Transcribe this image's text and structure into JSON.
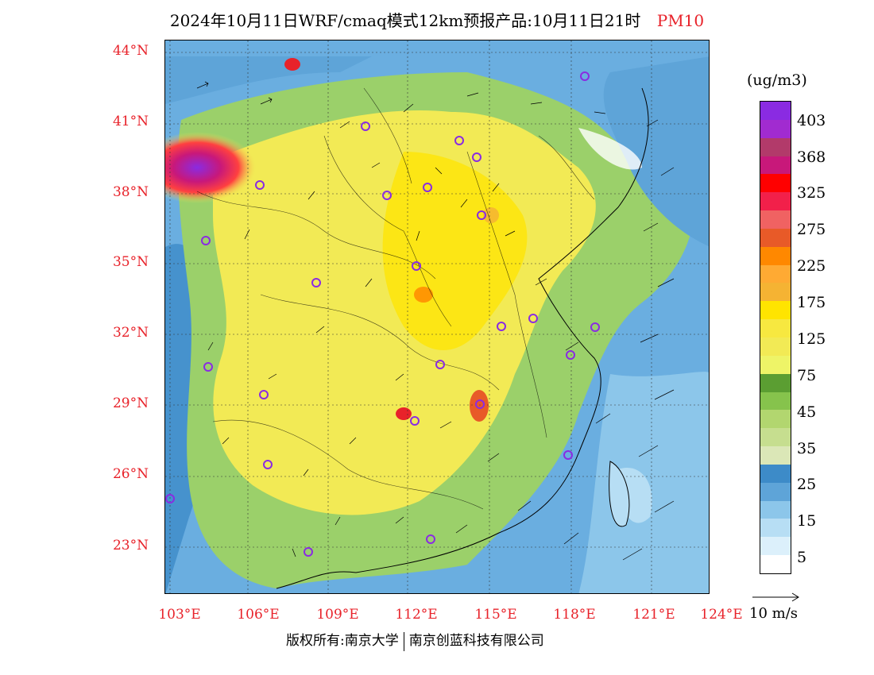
{
  "title": {
    "main": "2024年10月11日WRF/cmaq模式12km预报产品:10月11日21时",
    "pollutant": "PM10"
  },
  "map": {
    "latitude_labels": [
      "44°N",
      "41°N",
      "38°N",
      "35°N",
      "32°N",
      "29°N",
      "26°N",
      "23°N"
    ],
    "longitude_labels": [
      "103°E",
      "106°E",
      "109°E",
      "112°E",
      "115°E",
      "118°E",
      "121°E",
      "124°E"
    ],
    "background_colors": {
      "low": "#6aaee0",
      "yellow": "#f2ea55",
      "green": "#9bd06a",
      "high": "#e8222a",
      "purple": "#8a2be2"
    }
  },
  "legend": {
    "unit": "(ug/m3)",
    "labels": [
      "403",
      "368",
      "325",
      "275",
      "225",
      "175",
      "125",
      "75",
      "45",
      "35",
      "25",
      "15",
      "5"
    ],
    "colors": [
      "#8a2be2",
      "#a12bd0",
      "#b23a6a",
      "#c8187a",
      "#ff0000",
      "#f2204a",
      "#f06262",
      "#e85a28",
      "#ff8800",
      "#ffaa33",
      "#f5b333",
      "#ffe400",
      "#f7e840",
      "#f2ea55",
      "#eef467",
      "#5b9e32",
      "#86c34c",
      "#b2d66f",
      "#c6de8f",
      "#dbe7b7",
      "#3d8bc8",
      "#5ea4d8",
      "#8cc6ea",
      "#b7def4",
      "#dcf0fb",
      "#ffffff"
    ]
  },
  "wind_reference": {
    "label": "10 m/s"
  },
  "footer": {
    "left": "版权所有:南京大学",
    "right": "南京创蓝科技有限公司"
  }
}
